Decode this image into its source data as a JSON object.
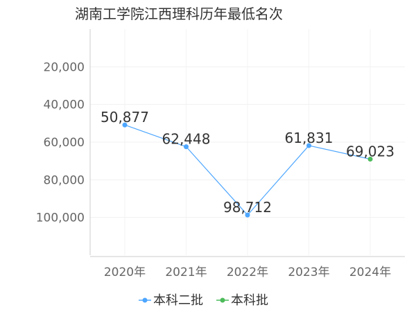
{
  "chart_data": {
    "type": "line",
    "title": "湖南工学院江西理科历年最低名次",
    "categories": [
      "2020年",
      "2021年",
      "2022年",
      "2023年",
      "2024年"
    ],
    "y_inverted": true,
    "ylim": [
      0,
      120000
    ],
    "yticks": [
      20000,
      40000,
      60000,
      80000,
      100000
    ],
    "ytick_labels": [
      "20,000",
      "40,000",
      "60,000",
      "80,000",
      "100,000"
    ],
    "grid": true,
    "legend_position": "bottom-center",
    "series": [
      {
        "name": "本科二批",
        "color": "#4da6ff",
        "values": [
          50877,
          62448,
          98712,
          61831,
          null
        ],
        "labels": [
          "50,877",
          "62,448",
          "98,712",
          "61,831",
          ""
        ]
      },
      {
        "name": "本科批",
        "color": "#4cbb5a",
        "values": [
          null,
          null,
          null,
          null,
          69023
        ],
        "labels": [
          "",
          "",
          "",
          "",
          "69,023"
        ]
      }
    ]
  }
}
